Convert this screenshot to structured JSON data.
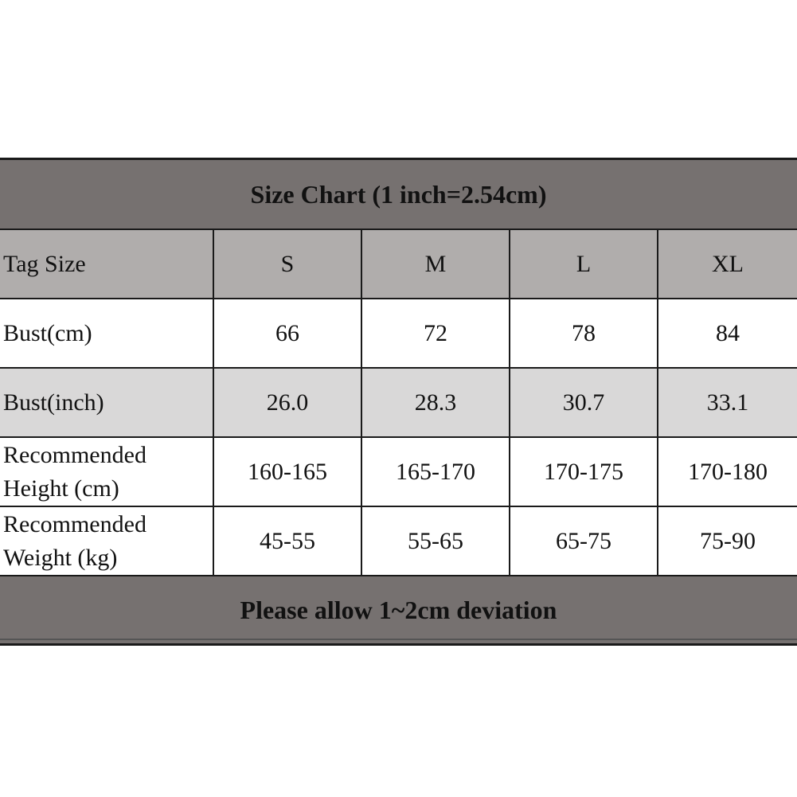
{
  "title": "Size Chart (1 inch=2.54cm)",
  "header": {
    "label": "Tag Size",
    "sizes": [
      "S",
      "M",
      "L",
      "XL"
    ]
  },
  "rows": [
    {
      "label": "Bust(cm)",
      "values": [
        "66",
        "72",
        "78",
        "84"
      ]
    },
    {
      "label": "Bust(inch)",
      "values": [
        "26.0",
        "28.3",
        "30.7",
        "33.1"
      ]
    },
    {
      "label_line1": "Recommended",
      "label_line2": "Height (cm)",
      "values": [
        "160-165",
        "165-170",
        "170-175",
        "170-180"
      ]
    },
    {
      "label_line1": "Recommended",
      "label_line2": "Weight (kg)",
      "values": [
        "45-55",
        "55-65",
        "65-75",
        "75-90"
      ]
    }
  ],
  "footer": "Please allow 1~2cm deviation",
  "colors": {
    "title_band": "#767170",
    "header_row": "#b0adac",
    "shaded_row": "#d9d8d8"
  }
}
